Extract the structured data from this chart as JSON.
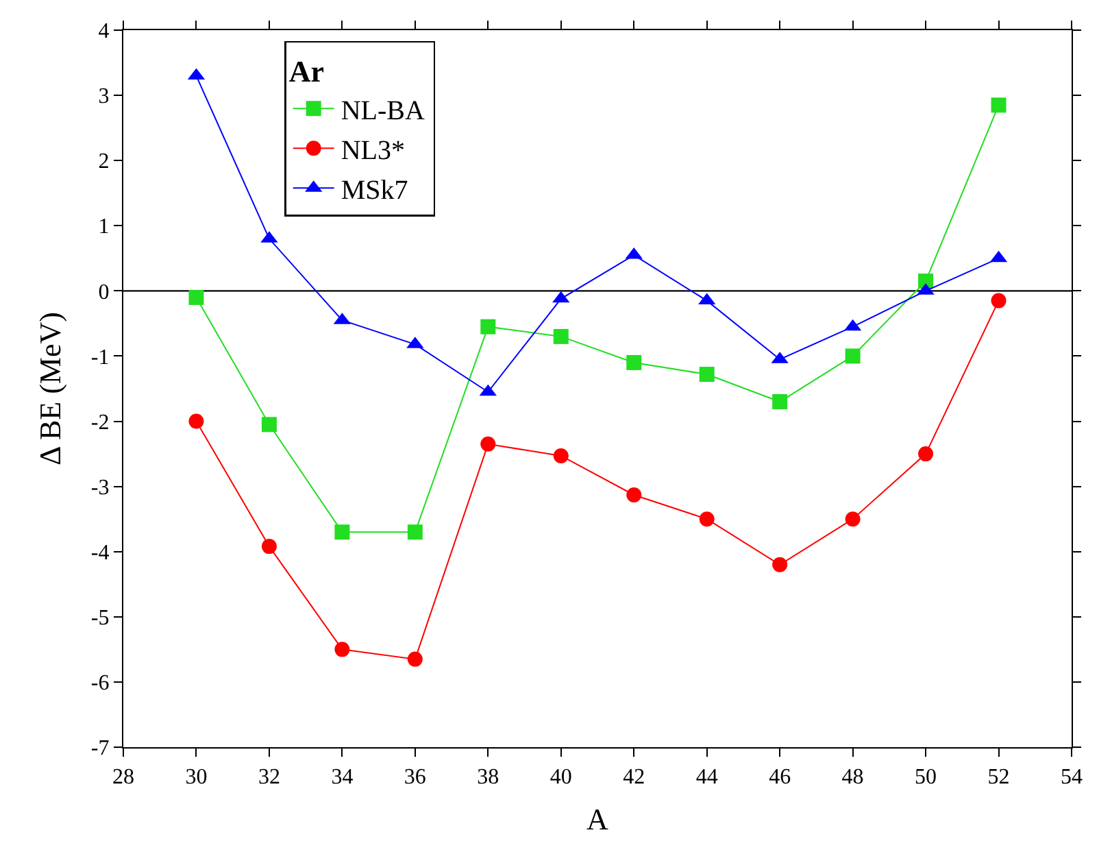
{
  "chart_data": {
    "type": "line",
    "xlabel": "A",
    "ylabel": "Δ BE (MeV)",
    "legend_title": "Ar",
    "x": [
      30,
      32,
      34,
      36,
      38,
      40,
      42,
      44,
      46,
      48,
      50,
      52
    ],
    "series": [
      {
        "name": "NL-BA",
        "color": "#22dd22",
        "marker": "square",
        "values": [
          -0.1,
          -2.05,
          -3.7,
          -3.7,
          -0.55,
          -0.7,
          -1.1,
          -1.28,
          -1.7,
          -1.0,
          0.15,
          2.85
        ]
      },
      {
        "name": "NL3*",
        "color": "#ff0000",
        "marker": "circle",
        "values": [
          -2.0,
          -3.92,
          -5.5,
          -5.65,
          -2.35,
          -2.53,
          -3.13,
          -3.5,
          -4.2,
          -3.5,
          -2.5,
          -0.15
        ]
      },
      {
        "name": "MSk7",
        "color": "#0000ff",
        "marker": "triangle",
        "values": [
          3.3,
          0.8,
          -0.45,
          -0.82,
          -1.55,
          -0.12,
          0.55,
          -0.15,
          -1.05,
          -0.55,
          0.0,
          0.5
        ]
      }
    ],
    "xlim": [
      28,
      54
    ],
    "xticks": [
      28,
      30,
      32,
      34,
      36,
      38,
      40,
      42,
      44,
      46,
      48,
      50,
      52,
      54
    ],
    "ylim": [
      -7,
      4
    ],
    "yticks": [
      -7,
      -6,
      -5,
      -4,
      -3,
      -2,
      -1,
      0,
      1,
      2,
      3,
      4
    ],
    "ref_lines": [
      {
        "axis": "y",
        "value": 0,
        "color": "#000000"
      }
    ],
    "grid": false,
    "legend": "top left",
    "line_style": "solid"
  }
}
